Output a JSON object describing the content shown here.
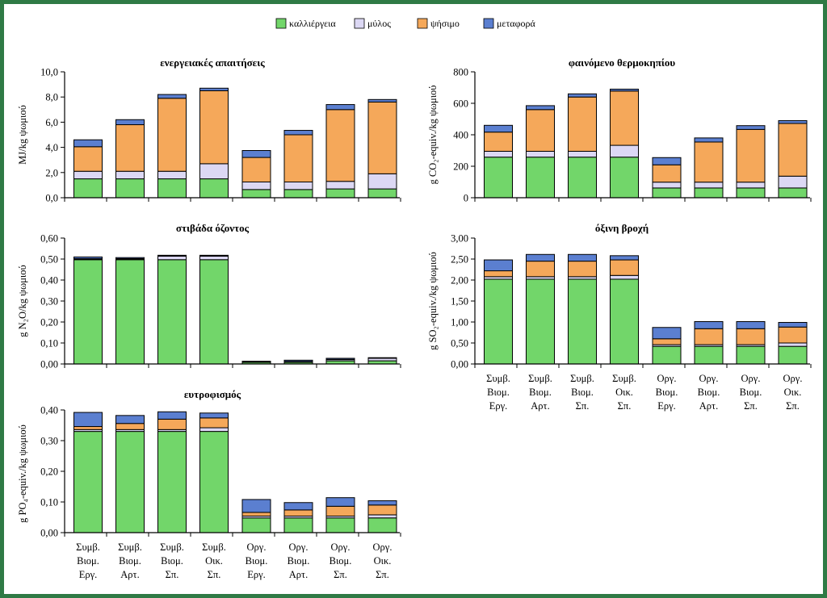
{
  "legend": [
    {
      "key": "cult",
      "label": "καλλιέργεια",
      "color": "#72d66a"
    },
    {
      "key": "mill",
      "label": "μύλος",
      "color": "#dcd8f4"
    },
    {
      "key": "bake",
      "label": "ψήσιμο",
      "color": "#f5a85a"
    },
    {
      "key": "trans",
      "label": "μεταφορά",
      "color": "#5b7fd0"
    }
  ],
  "categories": [
    [
      "Συμβ.",
      "Βιομ.",
      "Εργ."
    ],
    [
      "Συμβ.",
      "Βιομ.",
      "Αρτ."
    ],
    [
      "Συμβ.",
      "Βιομ.",
      "Σπ."
    ],
    [
      "Συμβ.",
      "Οικ.",
      "Σπ."
    ],
    [
      "Οργ.",
      "Βιομ.",
      "Εργ."
    ],
    [
      "Οργ.",
      "Βιομ.",
      "Αρτ."
    ],
    [
      "Οργ.",
      "Βιομ.",
      "Σπ."
    ],
    [
      "Οργ.",
      "Οικ.",
      "Σπ."
    ]
  ],
  "chart_data": [
    {
      "id": "energy",
      "type": "bar",
      "stacked": true,
      "title": "ενεργειακές απαιτήσεις",
      "ylabel": "MJ/kg ψωμιού",
      "ylim": [
        0,
        10
      ],
      "yticks": [
        "0,0",
        "2,0",
        "4,0",
        "6,0",
        "8,0",
        "10,0"
      ],
      "series": [
        {
          "name": "καλλιέργεια",
          "values": [
            1.5,
            1.5,
            1.5,
            1.5,
            0.65,
            0.65,
            0.7,
            0.7
          ]
        },
        {
          "name": "μύλος",
          "values": [
            0.6,
            0.6,
            0.6,
            1.2,
            0.6,
            0.6,
            0.6,
            1.2
          ]
        },
        {
          "name": "ψήσιμο",
          "values": [
            1.95,
            3.7,
            5.8,
            5.8,
            1.95,
            3.75,
            5.7,
            5.7
          ]
        },
        {
          "name": "μεταφορά",
          "values": [
            0.55,
            0.4,
            0.3,
            0.2,
            0.55,
            0.35,
            0.4,
            0.2
          ]
        }
      ]
    },
    {
      "id": "greenhouse",
      "type": "bar",
      "stacked": true,
      "title": "φαινόμενο θερμοκηπίου",
      "ylabel": "g CO₂-equiv./kg ψωμιού",
      "ylim": [
        0,
        800
      ],
      "yticks": [
        "0",
        "200",
        "400",
        "600",
        "800"
      ],
      "series": [
        {
          "name": "καλλιέργεια",
          "values": [
            258,
            258,
            258,
            258,
            62,
            62,
            62,
            62
          ]
        },
        {
          "name": "μύλος",
          "values": [
            37,
            37,
            37,
            75,
            37,
            37,
            37,
            75
          ]
        },
        {
          "name": "ψήσιμο",
          "values": [
            122,
            265,
            345,
            345,
            110,
            255,
            335,
            335
          ]
        },
        {
          "name": "μεταφορά",
          "values": [
            43,
            25,
            20,
            12,
            46,
            26,
            24,
            18
          ]
        }
      ]
    },
    {
      "id": "ozone",
      "type": "bar",
      "stacked": true,
      "title": "στιβάδα όζοντος",
      "ylabel": "g N₂O/kg ψωμιού",
      "ylim": [
        0,
        0.6
      ],
      "yticks": [
        "0,00",
        "0,10",
        "0,20",
        "0,30",
        "0,40",
        "0,50",
        "0,60"
      ],
      "series": [
        {
          "name": "καλλιέργεια",
          "values": [
            0.497,
            0.497,
            0.497,
            0.497,
            0.008,
            0.008,
            0.015,
            0.015
          ]
        },
        {
          "name": "μύλος",
          "values": [
            0.004,
            0.004,
            0.017,
            0.017,
            0.002,
            0.003,
            0.006,
            0.012
          ]
        },
        {
          "name": "ψήσιμο",
          "values": [
            0.001,
            0.001,
            0.001,
            0.001,
            0.001,
            0.001,
            0.001,
            0.001
          ]
        },
        {
          "name": "μεταφορά",
          "values": [
            0.008,
            0.005,
            0.003,
            0.003,
            0.002,
            0.006,
            0.005,
            0.002
          ]
        }
      ]
    },
    {
      "id": "acid",
      "type": "bar",
      "stacked": true,
      "title": "όξινη βροχή",
      "ylabel": "g SO₂-equiv./kg ψωμιού",
      "ylim": [
        0,
        3
      ],
      "yticks": [
        "0,00",
        "0,50",
        "1,00",
        "1,50",
        "2,00",
        "2,50",
        "3,00"
      ],
      "series": [
        {
          "name": "καλλιέργεια",
          "values": [
            2.02,
            2.02,
            2.02,
            2.02,
            0.42,
            0.42,
            0.42,
            0.42
          ]
        },
        {
          "name": "μύλος",
          "values": [
            0.06,
            0.06,
            0.06,
            0.09,
            0.04,
            0.04,
            0.04,
            0.08
          ]
        },
        {
          "name": "ψήσιμο",
          "values": [
            0.14,
            0.37,
            0.37,
            0.37,
            0.14,
            0.38,
            0.38,
            0.38
          ]
        },
        {
          "name": "μεταφορά",
          "values": [
            0.26,
            0.16,
            0.16,
            0.1,
            0.27,
            0.17,
            0.17,
            0.11
          ]
        }
      ]
    },
    {
      "id": "eutro",
      "type": "bar",
      "stacked": true,
      "title": "ευτροφισμός",
      "ylabel": "g PO₄-equiv./kg ψωμιού",
      "ylim": [
        0,
        0.4
      ],
      "yticks": [
        "0,00",
        "0,10",
        "0,20",
        "0,30",
        "0,40"
      ],
      "series": [
        {
          "name": "καλλιέργεια",
          "values": [
            0.33,
            0.33,
            0.33,
            0.33,
            0.048,
            0.048,
            0.048,
            0.048
          ]
        },
        {
          "name": "μύλος",
          "values": [
            0.006,
            0.006,
            0.006,
            0.012,
            0.006,
            0.006,
            0.006,
            0.01
          ]
        },
        {
          "name": "ψήσιμο",
          "values": [
            0.01,
            0.02,
            0.034,
            0.032,
            0.012,
            0.02,
            0.032,
            0.032
          ]
        },
        {
          "name": "μεταφορά",
          "values": [
            0.046,
            0.026,
            0.024,
            0.016,
            0.042,
            0.024,
            0.028,
            0.014
          ]
        }
      ]
    }
  ]
}
